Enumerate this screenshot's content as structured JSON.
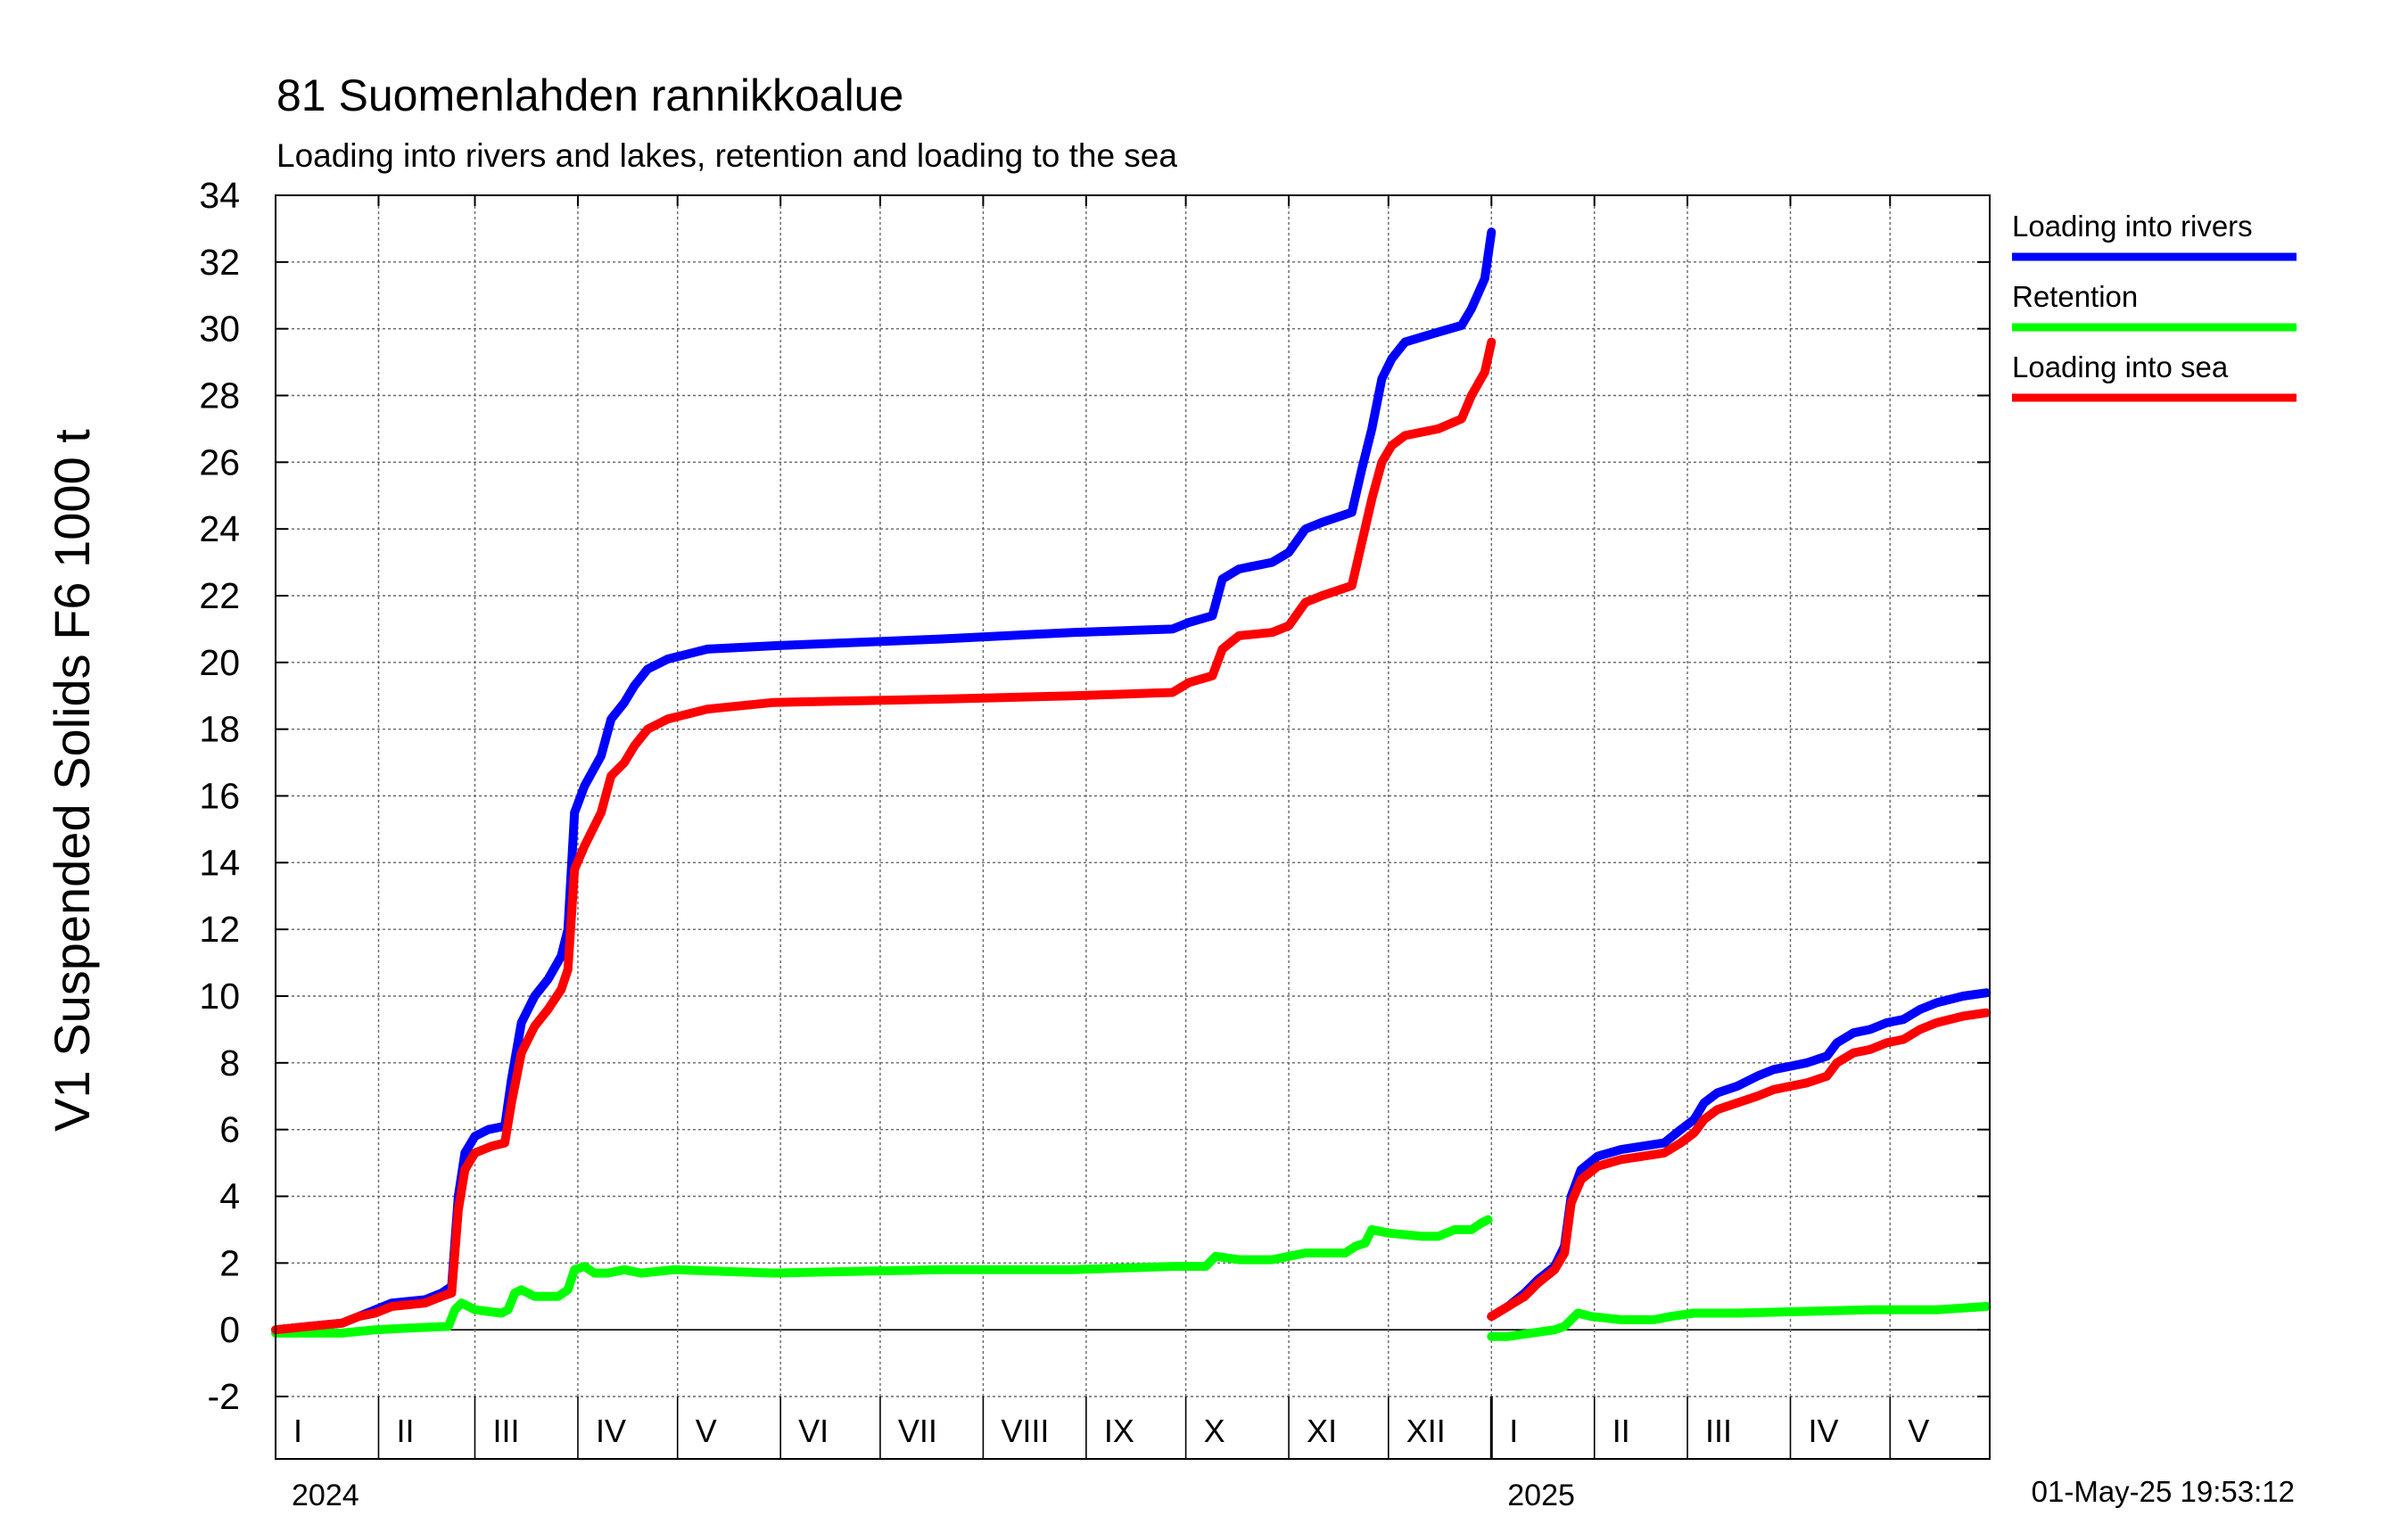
{
  "chart_data": {
    "type": "line",
    "title": "81 Suomenlahden rannikkoalue",
    "subtitle": "Loading into rivers and lakes, retention and loading to the sea",
    "ylabel": "V1 Suspended Solids F6 1000 t",
    "ylim": [
      -2,
      34
    ],
    "yticks": [
      -2,
      0,
      2,
      4,
      6,
      8,
      10,
      12,
      14,
      16,
      18,
      20,
      22,
      24,
      26,
      28,
      30,
      32,
      34
    ],
    "grid": true,
    "legend_position": "right",
    "x_unit": "days since 1 Jan 2024",
    "xlim": [
      0,
      516
    ],
    "years": [
      {
        "label": "2024",
        "start": 0
      },
      {
        "label": "2025",
        "start": 366
      }
    ],
    "month_labels": [
      {
        "label": "I",
        "start": 0,
        "end": 31
      },
      {
        "label": "II",
        "start": 31,
        "end": 60
      },
      {
        "label": "III",
        "start": 60,
        "end": 91
      },
      {
        "label": "IV",
        "start": 91,
        "end": 121
      },
      {
        "label": "V",
        "start": 121,
        "end": 152
      },
      {
        "label": "VI",
        "start": 152,
        "end": 182
      },
      {
        "label": "VII",
        "start": 182,
        "end": 213
      },
      {
        "label": "VIII",
        "start": 213,
        "end": 244
      },
      {
        "label": "IX",
        "start": 244,
        "end": 274
      },
      {
        "label": "X",
        "start": 274,
        "end": 305
      },
      {
        "label": "XI",
        "start": 305,
        "end": 335
      },
      {
        "label": "XII",
        "start": 335,
        "end": 366
      },
      {
        "label": "I",
        "start": 366,
        "end": 397
      },
      {
        "label": "II",
        "start": 397,
        "end": 425
      },
      {
        "label": "III",
        "start": 425,
        "end": 456
      },
      {
        "label": "IV",
        "start": 456,
        "end": 486
      },
      {
        "label": "V",
        "start": 486,
        "end": 517
      }
    ],
    "series": [
      {
        "name": "Loading into rivers",
        "color": "#0000ff",
        "segments": [
          [
            [
              0,
              0
            ],
            [
              10,
              0.1
            ],
            [
              20,
              0.2
            ],
            [
              25,
              0.4
            ],
            [
              30,
              0.6
            ],
            [
              35,
              0.8
            ],
            [
              45,
              0.9
            ],
            [
              50,
              1.1
            ],
            [
              53,
              1.3
            ],
            [
              55,
              4.0
            ],
            [
              57,
              5.3
            ],
            [
              60,
              5.8
            ],
            [
              64,
              6.0
            ],
            [
              69,
              6.1
            ],
            [
              71,
              7.5
            ],
            [
              74,
              9.2
            ],
            [
              78,
              10.0
            ],
            [
              82,
              10.5
            ],
            [
              86,
              11.2
            ],
            [
              88,
              12.0
            ],
            [
              90,
              15.5
            ],
            [
              93,
              16.3
            ],
            [
              98,
              17.2
            ],
            [
              101,
              18.3
            ],
            [
              105,
              18.8
            ],
            [
              108,
              19.3
            ],
            [
              112,
              19.8
            ],
            [
              118,
              20.1
            ],
            [
              130,
              20.4
            ],
            [
              150,
              20.5
            ],
            [
              200,
              20.7
            ],
            [
              240,
              20.9
            ],
            [
              270,
              21.0
            ],
            [
              275,
              21.2
            ],
            [
              282,
              21.4
            ],
            [
              285,
              22.5
            ],
            [
              290,
              22.8
            ],
            [
              300,
              23.0
            ],
            [
              305,
              23.3
            ],
            [
              310,
              24.0
            ],
            [
              315,
              24.2
            ],
            [
              324,
              24.5
            ],
            [
              327,
              25.8
            ],
            [
              330,
              27.0
            ],
            [
              333,
              28.5
            ],
            [
              336,
              29.1
            ],
            [
              340,
              29.6
            ],
            [
              350,
              29.9
            ],
            [
              357,
              30.1
            ],
            [
              360,
              30.6
            ],
            [
              364,
              31.5
            ],
            [
              366,
              32.9
            ]
          ],
          [
            [
              366,
              0.4
            ],
            [
              371,
              0.7
            ],
            [
              376,
              1.1
            ],
            [
              380,
              1.5
            ],
            [
              385,
              1.9
            ],
            [
              388,
              2.5
            ],
            [
              390,
              4.0
            ],
            [
              393,
              4.8
            ],
            [
              398,
              5.2
            ],
            [
              405,
              5.4
            ],
            [
              418,
              5.6
            ],
            [
              423,
              6.0
            ],
            [
              427,
              6.3
            ],
            [
              430,
              6.8
            ],
            [
              434,
              7.1
            ],
            [
              440,
              7.3
            ],
            [
              446,
              7.6
            ],
            [
              451,
              7.8
            ],
            [
              456,
              7.9
            ],
            [
              461,
              8.0
            ],
            [
              467,
              8.2
            ],
            [
              470,
              8.6
            ],
            [
              475,
              8.9
            ],
            [
              480,
              9.0
            ],
            [
              485,
              9.2
            ],
            [
              490,
              9.3
            ],
            [
              495,
              9.6
            ],
            [
              500,
              9.8
            ],
            [
              508,
              10.0
            ],
            [
              515,
              10.1
            ]
          ]
        ]
      },
      {
        "name": "Retention",
        "color": "#00ff00",
        "segments": [
          [
            [
              0,
              -0.1
            ],
            [
              20,
              -0.1
            ],
            [
              30,
              0.0
            ],
            [
              40,
              0.05
            ],
            [
              52,
              0.1
            ],
            [
              54,
              0.6
            ],
            [
              56,
              0.8
            ],
            [
              60,
              0.6
            ],
            [
              68,
              0.5
            ],
            [
              70,
              0.6
            ],
            [
              72,
              1.1
            ],
            [
              74,
              1.2
            ],
            [
              78,
              1.0
            ],
            [
              85,
              1.0
            ],
            [
              88,
              1.2
            ],
            [
              90,
              1.8
            ],
            [
              93,
              1.9
            ],
            [
              96,
              1.7
            ],
            [
              100,
              1.7
            ],
            [
              105,
              1.8
            ],
            [
              110,
              1.7
            ],
            [
              120,
              1.8
            ],
            [
              150,
              1.7
            ],
            [
              200,
              1.8
            ],
            [
              240,
              1.8
            ],
            [
              270,
              1.9
            ],
            [
              280,
              1.9
            ],
            [
              283,
              2.2
            ],
            [
              290,
              2.1
            ],
            [
              300,
              2.1
            ],
            [
              305,
              2.2
            ],
            [
              310,
              2.3
            ],
            [
              322,
              2.3
            ],
            [
              325,
              2.5
            ],
            [
              328,
              2.6
            ],
            [
              330,
              3.0
            ],
            [
              335,
              2.9
            ],
            [
              345,
              2.8
            ],
            [
              350,
              2.8
            ],
            [
              355,
              3.0
            ],
            [
              360,
              3.0
            ],
            [
              363,
              3.2
            ],
            [
              365,
              3.3
            ]
          ],
          [
            [
              366,
              -0.2
            ],
            [
              371,
              -0.2
            ],
            [
              378,
              -0.1
            ],
            [
              385,
              0.0
            ],
            [
              388,
              0.1
            ],
            [
              390,
              0.3
            ],
            [
              392,
              0.5
            ],
            [
              396,
              0.4
            ],
            [
              405,
              0.3
            ],
            [
              415,
              0.3
            ],
            [
              420,
              0.4
            ],
            [
              427,
              0.5
            ],
            [
              440,
              0.5
            ],
            [
              460,
              0.55
            ],
            [
              480,
              0.6
            ],
            [
              500,
              0.6
            ],
            [
              515,
              0.7
            ]
          ]
        ]
      },
      {
        "name": "Loading into sea",
        "color": "#ff0000",
        "segments": [
          [
            [
              0,
              0
            ],
            [
              10,
              0.1
            ],
            [
              20,
              0.2
            ],
            [
              25,
              0.4
            ],
            [
              30,
              0.5
            ],
            [
              35,
              0.7
            ],
            [
              45,
              0.8
            ],
            [
              50,
              1.0
            ],
            [
              53,
              1.1
            ],
            [
              55,
              3.6
            ],
            [
              57,
              4.8
            ],
            [
              60,
              5.3
            ],
            [
              65,
              5.5
            ],
            [
              69,
              5.6
            ],
            [
              71,
              6.8
            ],
            [
              74,
              8.3
            ],
            [
              78,
              9.1
            ],
            [
              82,
              9.6
            ],
            [
              86,
              10.2
            ],
            [
              88,
              10.8
            ],
            [
              90,
              13.8
            ],
            [
              93,
              14.5
            ],
            [
              98,
              15.5
            ],
            [
              101,
              16.6
            ],
            [
              105,
              17.0
            ],
            [
              108,
              17.5
            ],
            [
              112,
              18.0
            ],
            [
              118,
              18.3
            ],
            [
              130,
              18.6
            ],
            [
              150,
              18.8
            ],
            [
              200,
              18.9
            ],
            [
              240,
              19.0
            ],
            [
              270,
              19.1
            ],
            [
              275,
              19.4
            ],
            [
              282,
              19.6
            ],
            [
              285,
              20.4
            ],
            [
              290,
              20.8
            ],
            [
              300,
              20.9
            ],
            [
              305,
              21.1
            ],
            [
              310,
              21.8
            ],
            [
              315,
              22.0
            ],
            [
              324,
              22.3
            ],
            [
              327,
              23.6
            ],
            [
              330,
              24.9
            ],
            [
              333,
              26.0
            ],
            [
              336,
              26.5
            ],
            [
              340,
              26.8
            ],
            [
              350,
              27.0
            ],
            [
              357,
              27.3
            ],
            [
              360,
              28.0
            ],
            [
              364,
              28.7
            ],
            [
              366,
              29.6
            ]
          ],
          [
            [
              366,
              0.4
            ],
            [
              371,
              0.7
            ],
            [
              376,
              1.0
            ],
            [
              380,
              1.4
            ],
            [
              385,
              1.8
            ],
            [
              388,
              2.3
            ],
            [
              390,
              3.8
            ],
            [
              393,
              4.5
            ],
            [
              398,
              4.9
            ],
            [
              405,
              5.1
            ],
            [
              418,
              5.3
            ],
            [
              423,
              5.6
            ],
            [
              427,
              5.9
            ],
            [
              430,
              6.3
            ],
            [
              434,
              6.6
            ],
            [
              440,
              6.8
            ],
            [
              446,
              7.0
            ],
            [
              451,
              7.2
            ],
            [
              456,
              7.3
            ],
            [
              461,
              7.4
            ],
            [
              467,
              7.6
            ],
            [
              470,
              8.0
            ],
            [
              475,
              8.3
            ],
            [
              480,
              8.4
            ],
            [
              485,
              8.6
            ],
            [
              490,
              8.7
            ],
            [
              495,
              9.0
            ],
            [
              500,
              9.2
            ],
            [
              508,
              9.4
            ],
            [
              515,
              9.5
            ]
          ]
        ]
      }
    ]
  },
  "timestamp": "01-May-25 19:53:12"
}
